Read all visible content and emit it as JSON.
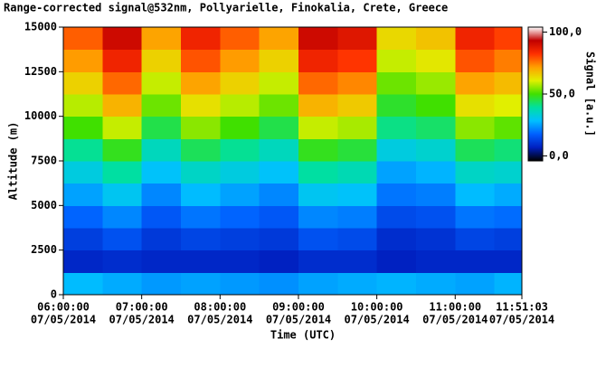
{
  "chart_data": {
    "type": "heatmap",
    "title": "Range-corrected signal@532nm, Pollyarielle, Finokalia, Crete, Greece",
    "x_label": "Time (UTC)",
    "y_label": "Altitude (m)",
    "colorbar_label": "Signal [a.u.]",
    "xlim": [
      6,
      11.85083
    ],
    "ylim": [
      0,
      15000
    ],
    "clim": [
      -4,
      104
    ],
    "xticks": [
      {
        "value": 6,
        "label": "06:00:00"
      },
      {
        "value": 7,
        "label": "07:00:00"
      },
      {
        "value": 8,
        "label": "08:00:00"
      },
      {
        "value": 9,
        "label": "09:00:00"
      },
      {
        "value": 10,
        "label": "10:00:00"
      },
      {
        "value": 11,
        "label": "11:00:00"
      },
      {
        "value": 11.85083,
        "label": "11:51:03"
      }
    ],
    "x_date_labels": [
      "07/05/2014",
      "07/05/2014",
      "07/05/2014",
      "07/05/2014",
      "07/05/2014",
      "07/05/2014",
      "07/05/2014"
    ],
    "yticks": [
      0,
      2500,
      5000,
      7500,
      10000,
      12500,
      15000
    ],
    "cticks": [
      {
        "value": 0,
        "label": "0,0"
      },
      {
        "value": 50,
        "label": "50,0"
      },
      {
        "value": 100,
        "label": "100,0"
      }
    ],
    "colorscale": [
      "#000000",
      "#0020c0",
      "#0060ff",
      "#00c0ff",
      "#00e0a0",
      "#40e000",
      "#e0f000",
      "#ffa000",
      "#ff3000",
      "#c00000",
      "#ffffff"
    ],
    "x_edges": [
      6,
      6.5,
      7,
      7.5,
      8,
      8.5,
      9,
      9.5,
      10,
      10.5,
      11,
      11.5,
      11.85083
    ],
    "y_edges": [
      0,
      1250,
      2500,
      3750,
      5000,
      6250,
      7500,
      8750,
      10000,
      11250,
      12500,
      13750,
      15000
    ],
    "z": [
      [
        28,
        26,
        24,
        25,
        24,
        23,
        25,
        26,
        27,
        26,
        25,
        27
      ],
      [
        8,
        9,
        8,
        8,
        8,
        7,
        9,
        9,
        7,
        8,
        8,
        8
      ],
      [
        12,
        15,
        11,
        13,
        12,
        11,
        15,
        14,
        9,
        10,
        13,
        12
      ],
      [
        18,
        22,
        16,
        20,
        18,
        16,
        22,
        21,
        14,
        15,
        20,
        19
      ],
      [
        25,
        30,
        22,
        28,
        25,
        22,
        30,
        29,
        20,
        21,
        28,
        26
      ],
      [
        32,
        39,
        29,
        35,
        32,
        29,
        39,
        37,
        25,
        27,
        35,
        34
      ],
      [
        40,
        48,
        36,
        44,
        40,
        36,
        48,
        46,
        32,
        34,
        44,
        42
      ],
      [
        50,
        59,
        45,
        55,
        50,
        45,
        59,
        57,
        41,
        43,
        55,
        52
      ],
      [
        58,
        69,
        53,
        63,
        58,
        53,
        69,
        66,
        47,
        50,
        63,
        61
      ],
      [
        65,
        77,
        59,
        71,
        65,
        59,
        77,
        74,
        53,
        56,
        71,
        68
      ],
      [
        72,
        85,
        65,
        79,
        72,
        65,
        85,
        82,
        59,
        62,
        79,
        75
      ],
      [
        78,
        91,
        71,
        85,
        78,
        71,
        91,
        88,
        64,
        67,
        85,
        81
      ]
    ]
  }
}
